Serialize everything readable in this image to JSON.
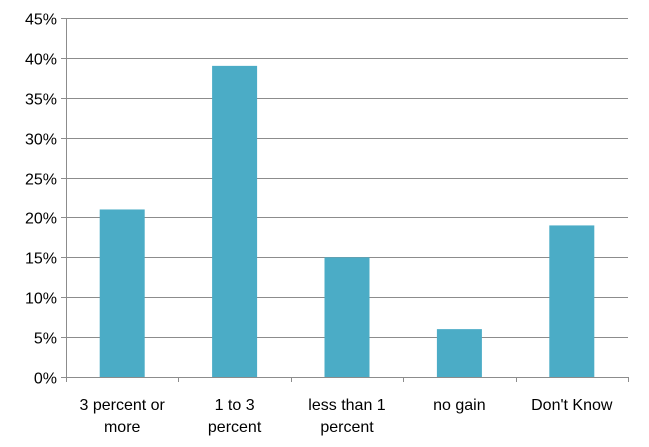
{
  "chart_data": {
    "type": "bar",
    "title": "",
    "xlabel": "",
    "ylabel": "",
    "categories": [
      "3 percent or more",
      "1 to 3 percent",
      "less than 1 percent",
      "no gain",
      "Don't Know"
    ],
    "category_label_lines": [
      [
        "3 percent or",
        "more"
      ],
      [
        "1 to 3",
        "percent"
      ],
      [
        "less than 1",
        "percent"
      ],
      [
        "no gain"
      ],
      [
        "Don't Know"
      ]
    ],
    "values": [
      21,
      39,
      15,
      6,
      19
    ],
    "value_unit": "percent",
    "ylim": [
      0,
      45
    ],
    "yticks": [
      0,
      5,
      10,
      15,
      20,
      25,
      30,
      35,
      40,
      45
    ],
    "ytick_labels": [
      "0%",
      "5%",
      "10%",
      "15%",
      "20%",
      "25%",
      "30%",
      "35%",
      "40%",
      "45%"
    ],
    "grid": true,
    "legend": "none",
    "colors": {
      "bar": "#4bacc6",
      "grid": "#8c8c8c",
      "text": "#000000"
    }
  }
}
